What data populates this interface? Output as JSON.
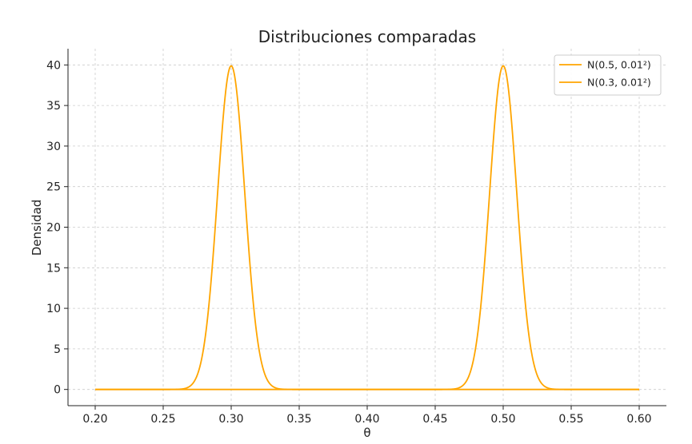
{
  "chart_data": {
    "type": "line",
    "title": "Distribuciones comparadas",
    "xlabel": "θ",
    "ylabel": "Densidad",
    "xlim": [
      0.18,
      0.62
    ],
    "ylim": [
      -2,
      42
    ],
    "x_ticks": [
      0.2,
      0.25,
      0.3,
      0.35,
      0.4,
      0.45,
      0.5,
      0.55,
      0.6
    ],
    "x_tick_labels": [
      "0.20",
      "0.25",
      "0.30",
      "0.35",
      "0.40",
      "0.45",
      "0.50",
      "0.55",
      "0.60"
    ],
    "y_ticks": [
      0,
      5,
      10,
      15,
      20,
      25,
      30,
      35,
      40
    ],
    "y_tick_labels": [
      "0",
      "5",
      "10",
      "15",
      "20",
      "25",
      "30",
      "35",
      "40"
    ],
    "grid": true,
    "legend_position": "top-right",
    "series": [
      {
        "name": "N(0.5, 0.01²)",
        "mean": 0.5,
        "sd": 0.01,
        "x_range": [
          0.2,
          0.6
        ],
        "color": "#FFA500"
      },
      {
        "name": "N(0.3, 0.01²)",
        "mean": 0.3,
        "sd": 0.01,
        "x_range": [
          0.2,
          0.6
        ],
        "color": "#FFA500"
      }
    ]
  }
}
